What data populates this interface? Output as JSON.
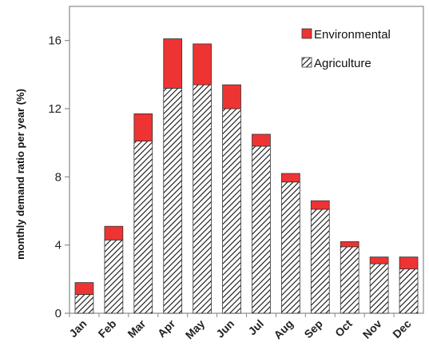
{
  "chart_data": {
    "type": "bar",
    "stacked": true,
    "categories": [
      "Jan",
      "Feb",
      "Mar",
      "Apr",
      "May",
      "Jun",
      "Jul",
      "Aug",
      "Sep",
      "Oct",
      "Nov",
      "Dec"
    ],
    "series": [
      {
        "name": "Agriculture",
        "pattern": "diagonal-hatch",
        "color": "#111111",
        "values": [
          1.1,
          4.3,
          10.1,
          13.2,
          13.4,
          12.0,
          9.8,
          7.7,
          6.1,
          3.9,
          2.9,
          2.6
        ]
      },
      {
        "name": "Environmental",
        "pattern": "solid",
        "color": "#ee3333",
        "values": [
          0.7,
          0.8,
          1.6,
          2.9,
          2.4,
          1.4,
          0.7,
          0.5,
          0.5,
          0.3,
          0.4,
          0.7
        ]
      }
    ],
    "ylabel": "monthly demand ratio per year (%)",
    "xlabel": "",
    "ylim": [
      0,
      18
    ],
    "yticks": [
      "0",
      "4",
      "8",
      "12",
      "16"
    ],
    "grid": false,
    "legend": "top-right",
    "legend_order": [
      "Environmental",
      "Agriculture"
    ]
  }
}
